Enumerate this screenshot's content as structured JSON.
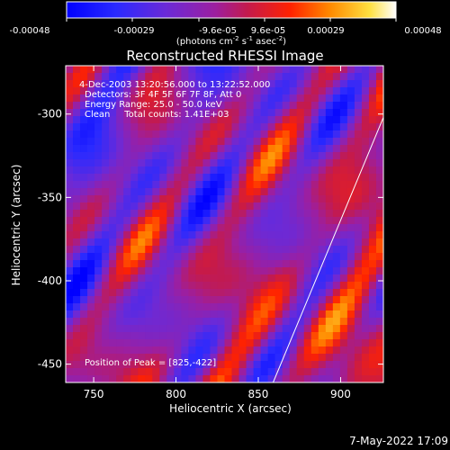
{
  "colorbar": {
    "ticks": [
      "-0.00048",
      "-0.00029",
      "-9.6e-05",
      "9.6e-05",
      "0.00029",
      "0.00048"
    ],
    "unit_prefix": "(photons cm",
    "unit_exp1": "-2",
    "unit_mid": " s",
    "unit_exp2": "-1",
    "unit_mid2": " asec",
    "unit_exp3": "-2",
    "unit_suffix": ")"
  },
  "chart_data": {
    "type": "heatmap",
    "title": "Reconstructed RHESSI Image",
    "xlabel": "Heliocentric X (arcsec)",
    "ylabel": "Heliocentric Y (arcsec)",
    "xlim": [
      733,
      926
    ],
    "ylim": [
      -461,
      -271
    ],
    "x_ticks": [
      "750",
      "800",
      "850",
      "900"
    ],
    "y_ticks": [
      "-300",
      "-350",
      "-400",
      "-450"
    ],
    "x_tick_values": [
      750,
      800,
      850,
      900
    ],
    "y_tick_values": [
      -300,
      -350,
      -400,
      -450
    ],
    "value_range": [
      -0.00048,
      0.00048
    ],
    "colormap": "rainbow-blue-purple-red-yellow-white",
    "annotations": {
      "time": "4-Dec-2003 13:20:56.000 to 13:22:52.000",
      "detectors": "Detectors: 3F 4F 5F 6F 7F 8F, Att 0",
      "energy": "Energy Range: 25.0 - 50.0 keV",
      "clean": "Clean     Total counts: 1.41E+03",
      "peak": "Position of Peak = [825,-422]"
    },
    "limb_line": [
      [
        859,
        -461
      ],
      [
        926,
        -302
      ]
    ],
    "peak_position": [
      825,
      -422
    ]
  },
  "footer": {
    "date": "7-May-2022 17:09"
  }
}
